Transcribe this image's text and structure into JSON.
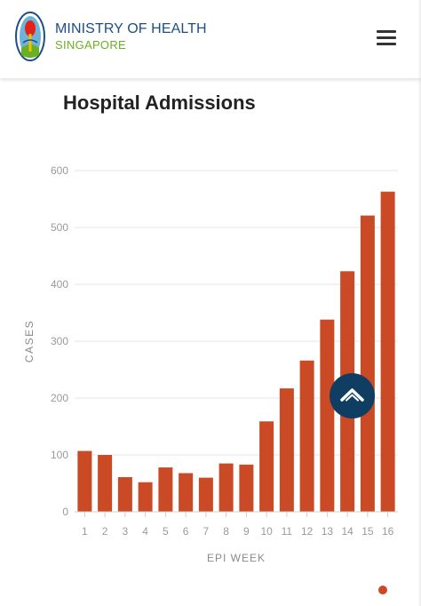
{
  "header": {
    "brand_name": "MINISTRY OF HEALTH",
    "brand_sub": "SINGAPORE",
    "logo_icon": "moh-crest-icon",
    "menu_icon": "hamburger-menu-icon"
  },
  "colors": {
    "brand_blue": "#1d4e86",
    "brand_green": "#6ab023",
    "bar": "#c94a24",
    "scroll_button": "#0f3e62"
  },
  "chart_data": {
    "type": "bar",
    "title": "Hospital Admissions",
    "xlabel": "EPI WEEK",
    "ylabel": "CASES",
    "categories": [
      "1",
      "2",
      "3",
      "4",
      "5",
      "6",
      "7",
      "8",
      "9",
      "10",
      "11",
      "12",
      "13",
      "14",
      "15",
      "16"
    ],
    "values": [
      107,
      100,
      61,
      52,
      78,
      68,
      60,
      85,
      83,
      159,
      217,
      266,
      338,
      423,
      521,
      563
    ],
    "ylim": [
      0,
      600
    ],
    "yticks": [
      0,
      100,
      200,
      300,
      400,
      500,
      600
    ],
    "grid": true,
    "legend": "none"
  },
  "scroll_top": {
    "icon": "chevron-up-icon"
  },
  "pagination": {
    "icon": "page-dot-icon"
  }
}
